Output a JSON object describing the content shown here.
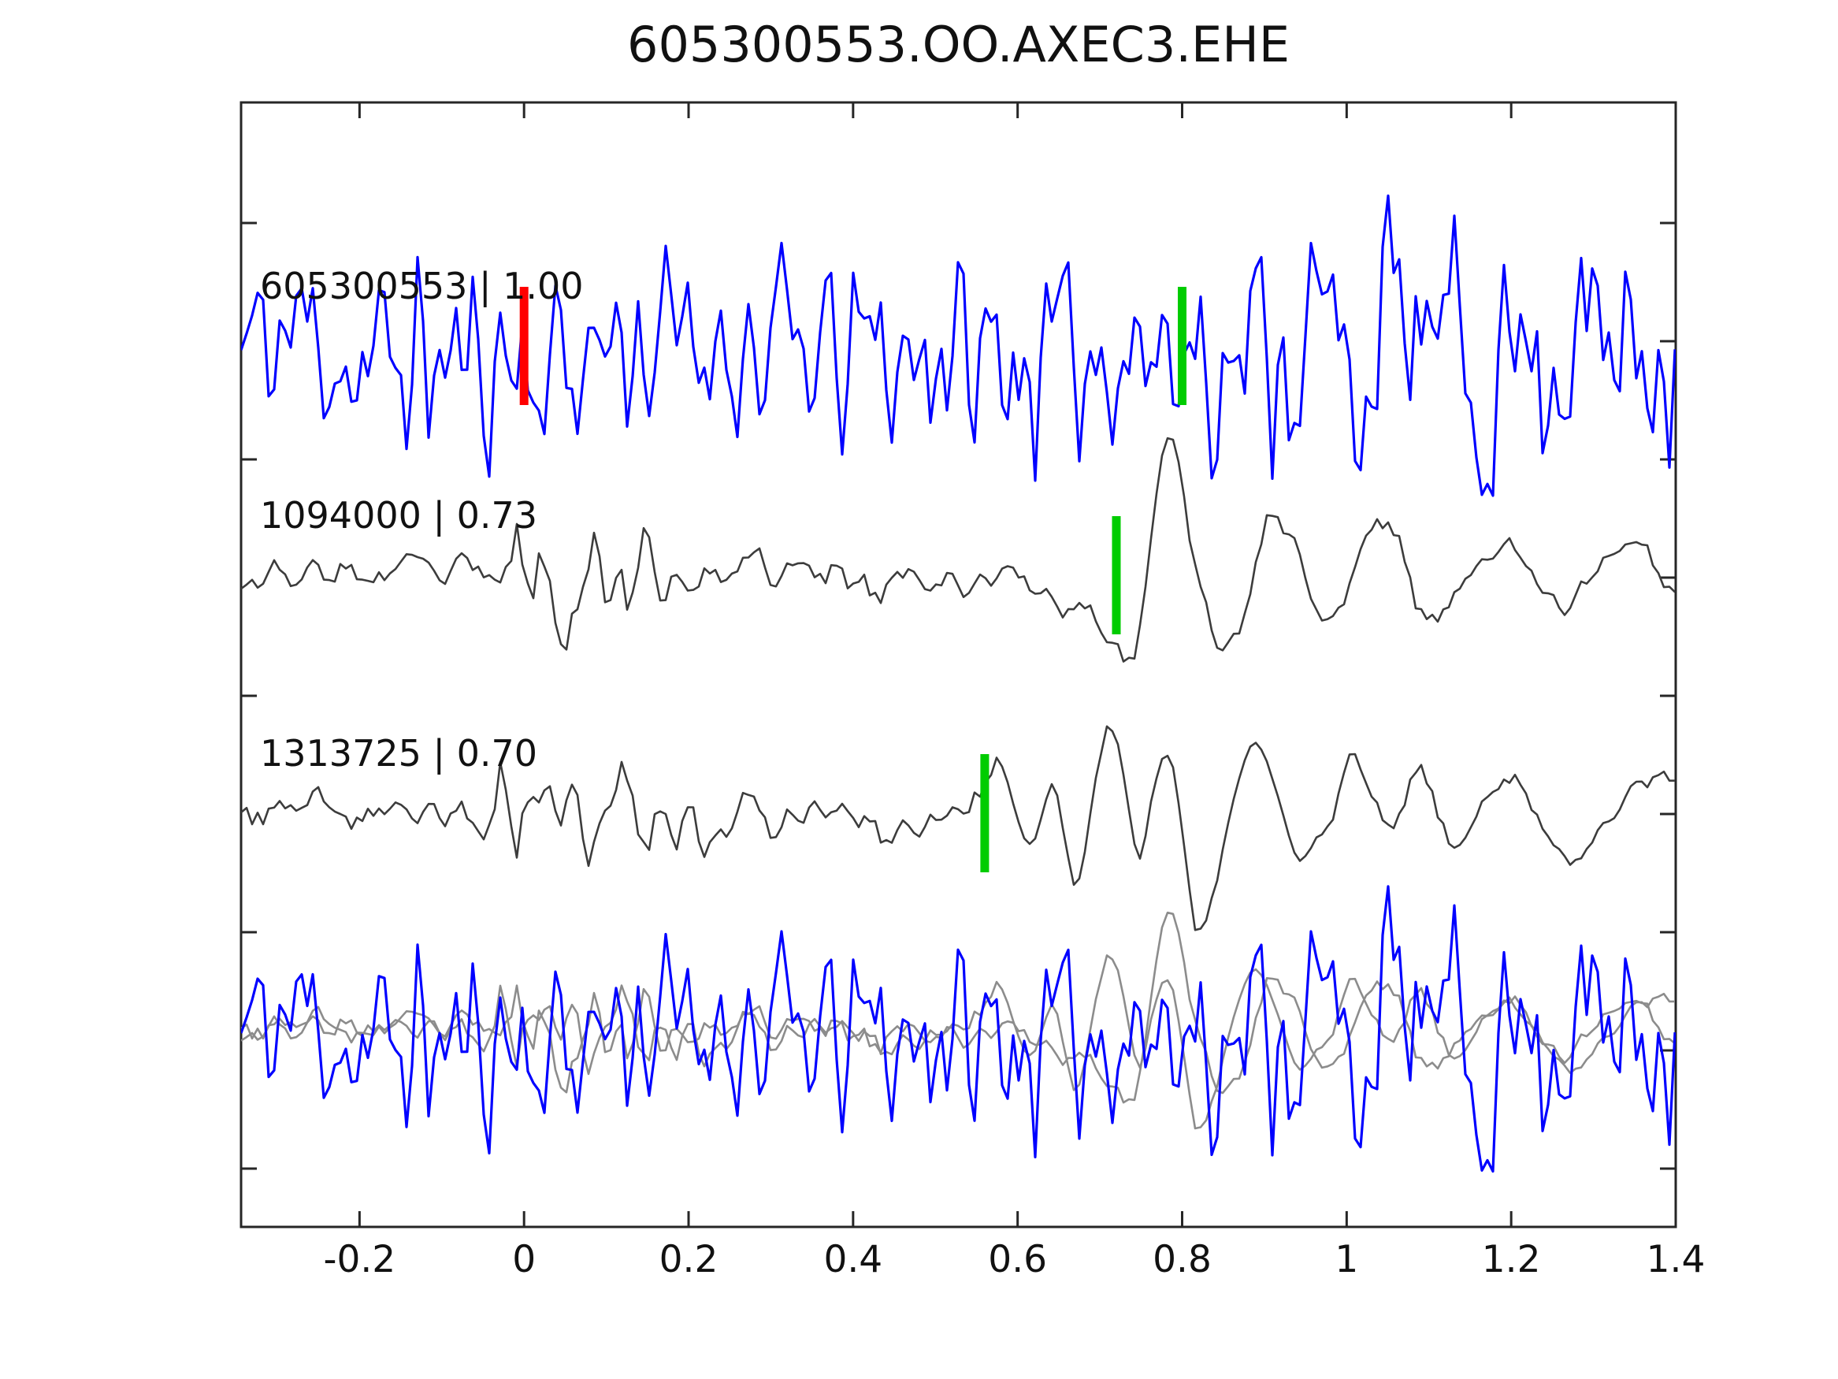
{
  "window": {
    "title": "605300553.OO.AXEC3.EHE"
  },
  "chart_data": {
    "type": "line",
    "title": "605300553.OO.AXEC3.EHE",
    "subtitle": "",
    "legend": "none",
    "grid": false,
    "background": "#ffffff",
    "x_axis": {
      "range": [
        -0.344,
        1.4
      ],
      "ticks": [
        -0.2,
        0,
        0.2,
        0.4,
        0.6,
        0.8,
        1,
        1.2,
        1.4
      ],
      "tick_labels": [
        "-0.2",
        "0",
        "0.2",
        "0.4",
        "0.6",
        "0.8",
        "1",
        "1.2",
        "1.4"
      ],
      "label": ""
    },
    "y_axis": {
      "labels_shown": false,
      "left_tick_count": 5,
      "right_tick_count": 9,
      "label": ""
    },
    "colors": {
      "reference_trace": "#0000ff",
      "match_trace": "#3c3c3c",
      "overlay_trace": "#8c8c8c",
      "reference_pick": "#ff0000",
      "match_pick": "#00cc00",
      "axis": "#262626"
    },
    "traces": [
      {
        "id": "605300553",
        "correlation": "1.00",
        "label": "605300553 | 1.00",
        "color_key": "reference_trace",
        "row": 0,
        "picks": [
          {
            "t": 0.0,
            "color_key": "reference_pick"
          },
          {
            "t": 0.8,
            "color_key": "match_pick"
          }
        ],
        "noise": [
          {
            "seed": 11,
            "smooth": 2,
            "envelope": [
              [
                -0.344,
                150
              ],
              [
                0.72,
                148
              ],
              [
                0.82,
                195
              ],
              [
                1.4,
                185
              ]
            ]
          },
          {
            "seed": 12,
            "smooth": 8,
            "envelope": [
              [
                -0.344,
                45
              ],
              [
                1.4,
                52
              ]
            ]
          }
        ],
        "wave": []
      },
      {
        "id": "1094000",
        "correlation": "0.73",
        "label": "1094000 | 0.73",
        "color_key": "match_trace",
        "row": 1,
        "picks": [
          {
            "t": 0.72,
            "color_key": "match_pick"
          }
        ],
        "noise": [
          {
            "seed": 23,
            "smooth": 3,
            "envelope": [
              [
                -0.344,
                30
              ],
              [
                -0.06,
                30
              ],
              [
                -0.02,
                95
              ],
              [
                0.13,
                95
              ],
              [
                0.2,
                38
              ],
              [
                0.6,
                38
              ],
              [
                0.7,
                26
              ],
              [
                1.4,
                24
              ]
            ]
          }
        ],
        "wave": [
          [
            0.45,
            0
          ],
          [
            0.55,
            0
          ],
          [
            0.6,
            -5
          ],
          [
            0.64,
            -18
          ],
          [
            0.66,
            -32
          ],
          [
            0.695,
            -62
          ],
          [
            0.72,
            -105
          ],
          [
            0.735,
            -112
          ],
          [
            0.75,
            -60
          ],
          [
            0.765,
            60
          ],
          [
            0.775,
            150
          ],
          [
            0.785,
            165
          ],
          [
            0.8,
            118
          ],
          [
            0.815,
            30
          ],
          [
            0.83,
            -58
          ],
          [
            0.845,
            -90
          ],
          [
            0.86,
            -74
          ],
          [
            0.875,
            -40
          ],
          [
            0.89,
            18
          ],
          [
            0.9,
            58
          ],
          [
            0.915,
            76
          ],
          [
            0.93,
            58
          ],
          [
            0.945,
            18
          ],
          [
            0.96,
            -30
          ],
          [
            0.975,
            -56
          ],
          [
            0.99,
            -44
          ],
          [
            1.005,
            -10
          ],
          [
            1.02,
            40
          ],
          [
            1.04,
            70
          ],
          [
            1.055,
            60
          ],
          [
            1.07,
            20
          ],
          [
            1.085,
            -26
          ],
          [
            1.1,
            -56
          ],
          [
            1.115,
            -60
          ],
          [
            1.13,
            -34
          ],
          [
            1.145,
            0
          ],
          [
            1.16,
            30
          ],
          [
            1.18,
            46
          ],
          [
            1.2,
            30
          ],
          [
            1.22,
            0
          ],
          [
            1.24,
            -30
          ],
          [
            1.26,
            -46
          ],
          [
            1.28,
            -24
          ],
          [
            1.3,
            6
          ],
          [
            1.32,
            30
          ],
          [
            1.34,
            40
          ],
          [
            1.36,
            24
          ],
          [
            1.38,
            0
          ],
          [
            1.4,
            -14
          ]
        ]
      },
      {
        "id": "1313725",
        "correlation": "0.70",
        "label": "1313725 | 0.70",
        "color_key": "match_trace",
        "row": 2,
        "picks": [
          {
            "t": 0.56,
            "color_key": "match_pick"
          }
        ],
        "noise": [
          {
            "seed": 37,
            "smooth": 3,
            "envelope": [
              [
                -0.344,
                34
              ],
              [
                -0.1,
                34
              ],
              [
                -0.03,
                88
              ],
              [
                0.16,
                80
              ],
              [
                0.28,
                42
              ],
              [
                0.5,
                46
              ],
              [
                0.6,
                28
              ],
              [
                1.4,
                22
              ]
            ]
          }
        ],
        "wave": [
          [
            0.44,
            0
          ],
          [
            0.5,
            6
          ],
          [
            0.535,
            20
          ],
          [
            0.555,
            38
          ],
          [
            0.57,
            52
          ],
          [
            0.59,
            28
          ],
          [
            0.614,
            -61
          ],
          [
            0.643,
            39
          ],
          [
            0.672,
            -98
          ],
          [
            0.708,
            114
          ],
          [
            0.744,
            -36
          ],
          [
            0.78,
            62
          ],
          [
            0.8,
            -30
          ],
          [
            0.82,
            -148
          ],
          [
            0.85,
            -58
          ],
          [
            0.88,
            92
          ],
          [
            0.91,
            28
          ],
          [
            0.945,
            -62
          ],
          [
            0.98,
            10
          ],
          [
            1.01,
            55
          ],
          [
            1.05,
            -20
          ],
          [
            1.09,
            48
          ],
          [
            1.13,
            -45
          ],
          [
            1.17,
            28
          ],
          [
            1.21,
            42
          ],
          [
            1.25,
            -34
          ],
          [
            1.29,
            -52
          ],
          [
            1.33,
            14
          ],
          [
            1.36,
            46
          ],
          [
            1.4,
            56
          ]
        ]
      },
      {
        "id": "overlay",
        "label": "",
        "row": 3,
        "picks": [],
        "overlay": [
          {
            "source": 1,
            "color_key": "overlay_trace",
            "scale": 0.85
          },
          {
            "source": 2,
            "color_key": "overlay_trace",
            "scale": 0.85
          },
          {
            "source": 0,
            "color_key": "reference_trace",
            "scale": 0.95
          }
        ]
      }
    ]
  }
}
